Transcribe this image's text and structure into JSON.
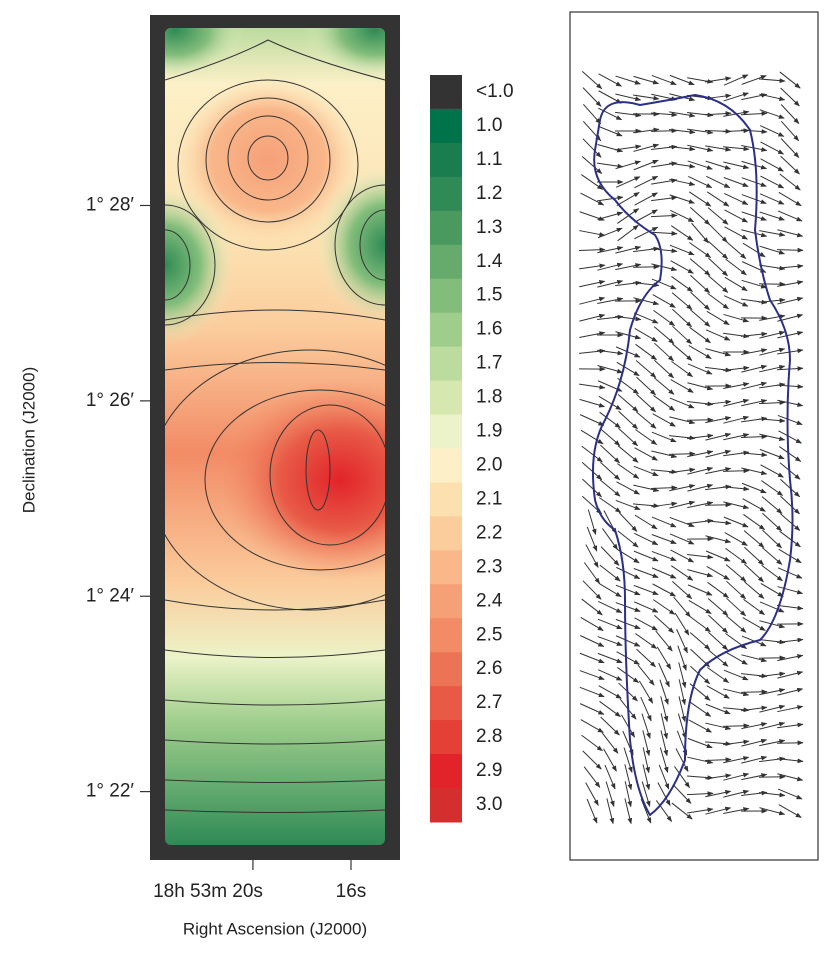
{
  "chart_data": {
    "type": "contour",
    "ylabel": "Declination (J2000)",
    "xlabel": "Right Ascension (J2000)",
    "xlim": [
      24.2,
      14.0
    ],
    "xticks": [
      {
        "value": 20,
        "label": "18h 53m 20s"
      },
      {
        "value": 16,
        "label": "16s"
      }
    ],
    "ylim": [
      21.3,
      29.95
    ],
    "yticks": [
      {
        "value": 28,
        "label": "1° 28′"
      },
      {
        "value": 26,
        "label": "1° 26′"
      },
      {
        "value": 24,
        "label": "1° 24′"
      },
      {
        "value": 22,
        "label": "1° 22′"
      }
    ],
    "colorbar": {
      "below_label": "<1.0",
      "below_color": "#333333",
      "levels": [
        {
          "value": 1,
          "label": "1.0"
        },
        1.1,
        1.2,
        1.3,
        1.4,
        1.5,
        1.6,
        1.7,
        1.8,
        1.9,
        {
          "value": 2,
          "label": "2.0"
        },
        2.1,
        2.2,
        2.3,
        2.4,
        2.5,
        2.6,
        2.7,
        2.8,
        2.9,
        {
          "value": 3,
          "label": "3.0"
        }
      ],
      "colors": [
        "#00734a",
        "#1a7d4f",
        "#2f8a55",
        "#4a995e",
        "#66ab6b",
        "#82bd7b",
        "#9fce8c",
        "#bcdb9f",
        "#d6e8b0",
        "#ecf3c8",
        "#fdf0c8",
        "#fce0b0",
        "#fbcc9c",
        "#f9b78a",
        "#f6a078",
        "#f28b66",
        "#ed7356",
        "#e85a46",
        "#e54036",
        "#e2232a",
        "#d42e2e"
      ]
    }
  }
}
